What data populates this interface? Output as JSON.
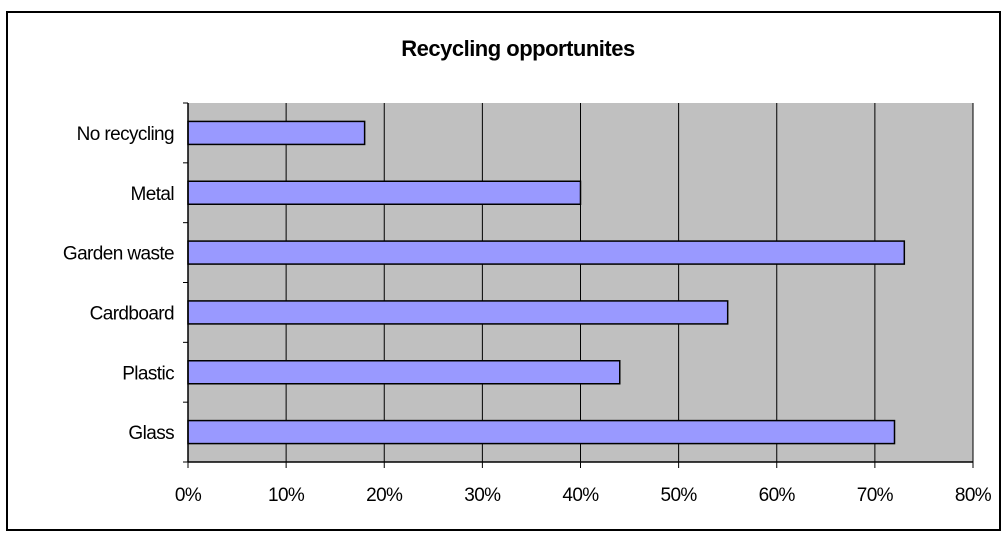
{
  "chart_data": {
    "type": "bar",
    "orientation": "horizontal",
    "title": "Recycling opportunites",
    "xlabel": "",
    "ylabel": "",
    "categories": [
      "Glass",
      "Plastic",
      "Cardboard",
      "Garden waste",
      "Metal",
      "No recycling"
    ],
    "values": [
      0.72,
      0.44,
      0.55,
      0.73,
      0.4,
      0.18
    ],
    "xlim": [
      0,
      0.8
    ],
    "x_ticks": [
      "0%",
      "10%",
      "20%",
      "30%",
      "40%",
      "50%",
      "60%",
      "70%",
      "80%"
    ],
    "grid": "vertical",
    "legend": "none",
    "colors": {
      "bar_fill": "#9999ff",
      "bar_stroke": "#000000",
      "plot_background": "#c0c0c0",
      "gridline": "#000000"
    }
  }
}
